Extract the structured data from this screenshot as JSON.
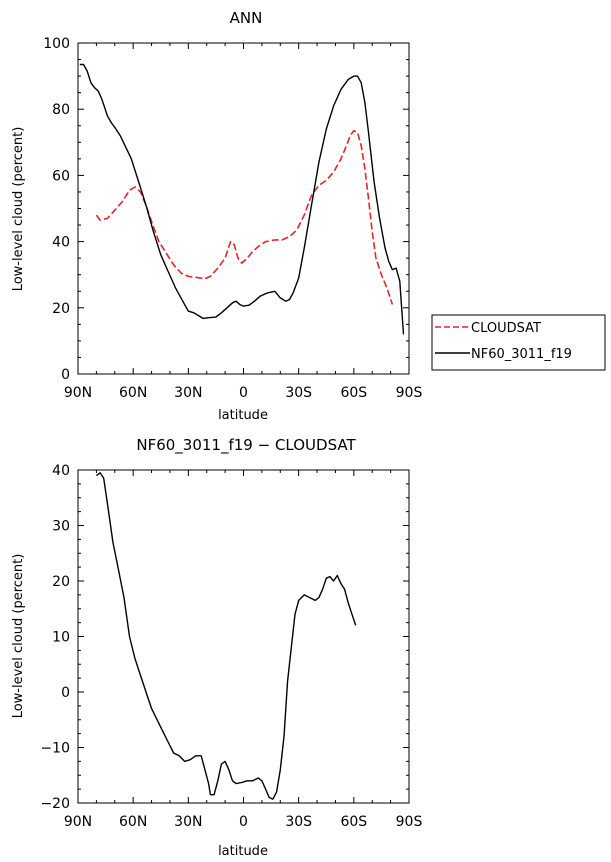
{
  "chart_data": [
    {
      "type": "line",
      "title": "ANN",
      "xlabel": "latitude",
      "ylabel": "Low-level cloud (percent)",
      "xlim": [
        90,
        -90
      ],
      "ylim": [
        0,
        100
      ],
      "x_ticks": [
        90,
        60,
        30,
        0,
        -30,
        -60,
        -90
      ],
      "x_tick_labels": [
        "90N",
        "60N",
        "30N",
        "0",
        "30S",
        "60S",
        "90S"
      ],
      "y_ticks": [
        0,
        20,
        40,
        60,
        80,
        100
      ],
      "y_tick_labels": [
        "0",
        "20",
        "40",
        "60",
        "80",
        "100"
      ],
      "legend_position": "right",
      "series": [
        {
          "name": "CLOUDSAT",
          "color": "#e8242a",
          "dash": "dashed",
          "points": [
            [
              80,
              48
            ],
            [
              78,
              46.5
            ],
            [
              74,
              47
            ],
            [
              70,
              49.5
            ],
            [
              66,
              52
            ],
            [
              62,
              55.5
            ],
            [
              59,
              56.5
            ],
            [
              56,
              55
            ],
            [
              53,
              51
            ],
            [
              50,
              46
            ],
            [
              46,
              40
            ],
            [
              42,
              36.5
            ],
            [
              38,
              33
            ],
            [
              34,
              30.5
            ],
            [
              30,
              29.5
            ],
            [
              26,
              29.2
            ],
            [
              21,
              28.8
            ],
            [
              18,
              29.5
            ],
            [
              14,
              32
            ],
            [
              10,
              35
            ],
            [
              7,
              40
            ],
            [
              5,
              39
            ],
            [
              3,
              35
            ],
            [
              1,
              33.5
            ],
            [
              -2,
              35
            ],
            [
              -5,
              37
            ],
            [
              -8,
              38.5
            ],
            [
              -12,
              40
            ],
            [
              -17,
              40.5
            ],
            [
              -21,
              40.5
            ],
            [
              -25,
              41.5
            ],
            [
              -29,
              43.5
            ],
            [
              -33,
              48
            ],
            [
              -37,
              54
            ],
            [
              -41,
              57
            ],
            [
              -45,
              58.5
            ],
            [
              -49,
              61
            ],
            [
              -53,
              65
            ],
            [
              -56,
              69
            ],
            [
              -58,
              72
            ],
            [
              -60,
              73.5
            ],
            [
              -62,
              73
            ],
            [
              -64,
              69
            ],
            [
              -66,
              62
            ],
            [
              -68,
              53
            ],
            [
              -70,
              43
            ],
            [
              -72,
              35
            ],
            [
              -75,
              30
            ],
            [
              -78,
              26
            ],
            [
              -81,
              21
            ]
          ]
        },
        {
          "name": "NF60_3011_f19",
          "color": "#000000",
          "dash": "solid",
          "points": [
            [
              89,
              93.5
            ],
            [
              87,
              93.5
            ],
            [
              85,
              91.5
            ],
            [
              83,
              88
            ],
            [
              81,
              86.5
            ],
            [
              79,
              85.5
            ],
            [
              77,
              83
            ],
            [
              74,
              78
            ],
            [
              72,
              76
            ],
            [
              70,
              74.5
            ],
            [
              67,
              72
            ],
            [
              64,
              68.5
            ],
            [
              61,
              65
            ],
            [
              57,
              58
            ],
            [
              53,
              51
            ],
            [
              49,
              43
            ],
            [
              45,
              36
            ],
            [
              41,
              31
            ],
            [
              37,
              26
            ],
            [
              33,
              22
            ],
            [
              30,
              19
            ],
            [
              27,
              18.5
            ],
            [
              24,
              17.5
            ],
            [
              22,
              16.8
            ],
            [
              19,
              17
            ],
            [
              15,
              17.2
            ],
            [
              12,
              18.5
            ],
            [
              9,
              20
            ],
            [
              6,
              21.5
            ],
            [
              4,
              22
            ],
            [
              2,
              21
            ],
            [
              0,
              20.5
            ],
            [
              -3,
              20.8
            ],
            [
              -6,
              22
            ],
            [
              -9,
              23.5
            ],
            [
              -13,
              24.5
            ],
            [
              -17,
              25
            ],
            [
              -20,
              23
            ],
            [
              -23,
              22
            ],
            [
              -25,
              22.5
            ],
            [
              -27,
              24.5
            ],
            [
              -30,
              29
            ],
            [
              -33,
              38
            ],
            [
              -37,
              51
            ],
            [
              -41,
              64
            ],
            [
              -45,
              74
            ],
            [
              -49,
              81
            ],
            [
              -53,
              86
            ],
            [
              -57,
              89
            ],
            [
              -60,
              90
            ],
            [
              -62,
              90
            ],
            [
              -64,
              88
            ],
            [
              -66,
              82
            ],
            [
              -68,
              73
            ],
            [
              -71,
              58
            ],
            [
              -74,
              47
            ],
            [
              -77,
              38
            ],
            [
              -79,
              34
            ],
            [
              -81,
              31.5
            ],
            [
              -83,
              32
            ],
            [
              -85,
              28
            ],
            [
              -87,
              12
            ]
          ]
        }
      ]
    },
    {
      "type": "line",
      "title": "NF60_3011_f19 − CLOUDSAT",
      "xlabel": "latitude",
      "ylabel": "Low-level cloud (percent)",
      "xlim": [
        90,
        -90
      ],
      "ylim": [
        -20,
        40
      ],
      "x_ticks": [
        90,
        60,
        30,
        0,
        -30,
        -60,
        -90
      ],
      "x_tick_labels": [
        "90N",
        "60N",
        "30N",
        "0",
        "30S",
        "60S",
        "90S"
      ],
      "y_ticks": [
        -20,
        -10,
        0,
        10,
        20,
        30,
        40
      ],
      "y_tick_labels": [
        "−20",
        "−10",
        "0",
        "10",
        "20",
        "30",
        "40"
      ],
      "series": [
        {
          "color": "#000000",
          "dash": "solid",
          "points": [
            [
              80,
              39
            ],
            [
              78,
              39.5
            ],
            [
              76,
              38.5
            ],
            [
              74,
              34
            ],
            [
              71,
              27
            ],
            [
              68,
              22
            ],
            [
              65,
              17
            ],
            [
              62,
              10
            ],
            [
              59,
              6
            ],
            [
              56,
              3
            ],
            [
              53,
              0
            ],
            [
              50,
              -3
            ],
            [
              47,
              -5
            ],
            [
              44,
              -7
            ],
            [
              41,
              -9
            ],
            [
              38,
              -11
            ],
            [
              35,
              -11.5
            ],
            [
              32,
              -12.5
            ],
            [
              29,
              -12.2
            ],
            [
              26,
              -11.5
            ],
            [
              23,
              -11.5
            ],
            [
              21,
              -14
            ],
            [
              19,
              -16.5
            ],
            [
              18,
              -18.5
            ],
            [
              16,
              -18.5
            ],
            [
              14,
              -16
            ],
            [
              12,
              -13
            ],
            [
              10,
              -12.5
            ],
            [
              8,
              -14
            ],
            [
              6,
              -16
            ],
            [
              4,
              -16.5
            ],
            [
              1,
              -16.3
            ],
            [
              -2,
              -16
            ],
            [
              -5,
              -16
            ],
            [
              -8,
              -15.5
            ],
            [
              -10,
              -16
            ],
            [
              -12,
              -17.5
            ],
            [
              -14,
              -19
            ],
            [
              -16,
              -19.3
            ],
            [
              -18,
              -18
            ],
            [
              -20,
              -14
            ],
            [
              -22,
              -8
            ],
            [
              -24,
              2
            ],
            [
              -26,
              8
            ],
            [
              -28,
              14
            ],
            [
              -30,
              16.5
            ],
            [
              -33,
              17.5
            ],
            [
              -36,
              17
            ],
            [
              -39,
              16.5
            ],
            [
              -41,
              17
            ],
            [
              -43,
              18.5
            ],
            [
              -45,
              20.5
            ],
            [
              -47,
              20.8
            ],
            [
              -49,
              20
            ],
            [
              -51,
              21
            ],
            [
              -53,
              19.5
            ],
            [
              -55,
              18.5
            ],
            [
              -57,
              16
            ],
            [
              -59,
              14
            ],
            [
              -61,
              12
            ]
          ]
        }
      ]
    }
  ]
}
